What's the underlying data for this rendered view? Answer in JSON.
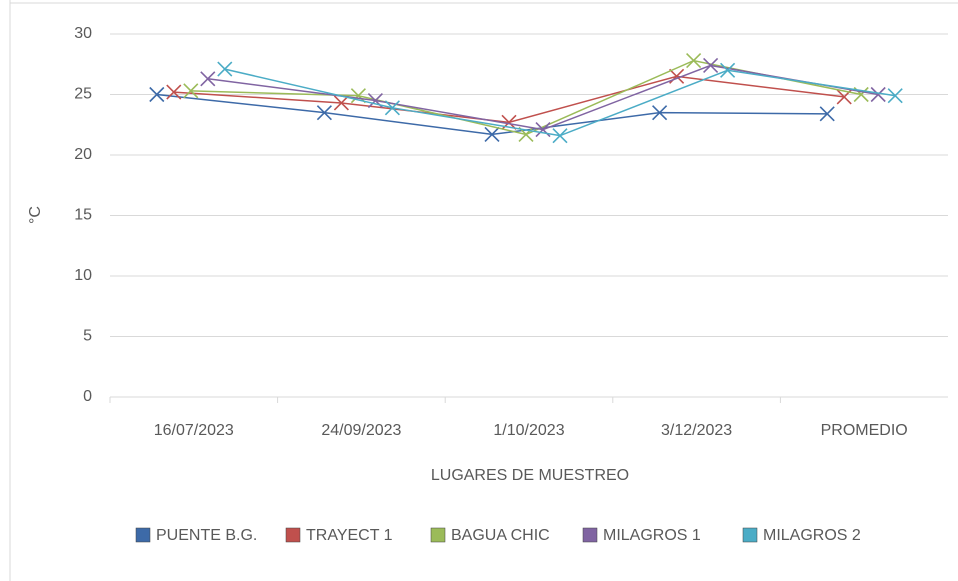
{
  "chart_data": {
    "type": "line",
    "categories": [
      "16/07/2023",
      "24/09/2023",
      "1/10/2023",
      "3/12/2023",
      "PROMEDIO"
    ],
    "x_label": "LUGARES DE MUESTREO",
    "y_label": "°C",
    "series": [
      {
        "name": "PUENTE B.G.",
        "color": "#3d6aa8",
        "values": [
          25.0,
          23.5,
          21.7,
          23.5,
          23.4
        ]
      },
      {
        "name": "TRAYECT 1",
        "color": "#c0504d",
        "values": [
          25.2,
          24.3,
          22.7,
          26.5,
          24.8
        ]
      },
      {
        "name": "BAGUA CHIC",
        "color": "#9bbb59",
        "values": [
          25.3,
          24.9,
          21.7,
          27.8,
          25.0
        ]
      },
      {
        "name": "MILAGROS 1",
        "color": "#8064a2",
        "values": [
          26.3,
          24.5,
          22.1,
          27.4,
          25.0
        ]
      },
      {
        "name": "MILAGROS 2",
        "color": "#4bacc6",
        "values": [
          27.1,
          23.9,
          21.6,
          27.0,
          24.9
        ]
      }
    ],
    "ylim": [
      0,
      30
    ],
    "yticks": [
      0,
      5,
      10,
      15,
      20,
      25,
      30
    ],
    "grid": true,
    "legend": "bottom"
  }
}
